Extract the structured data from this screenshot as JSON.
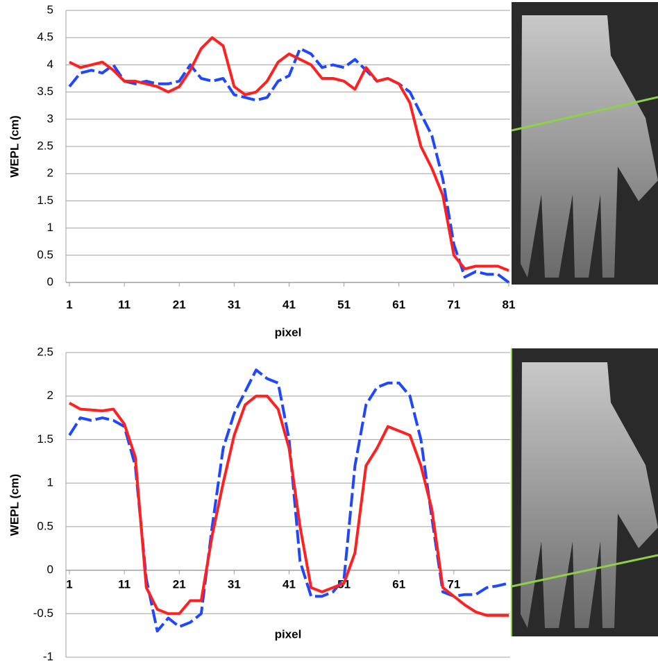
{
  "chart_data": [
    {
      "type": "line",
      "xlabel": "pixel",
      "ylabel": "WEPL (cm)",
      "x": [
        1,
        3,
        5,
        7,
        9,
        11,
        13,
        15,
        17,
        19,
        21,
        23,
        25,
        27,
        29,
        31,
        33,
        35,
        37,
        39,
        41,
        43,
        45,
        47,
        49,
        51,
        53,
        55,
        57,
        59,
        61,
        63,
        65,
        67,
        69,
        71,
        73,
        75,
        77,
        79,
        81
      ],
      "series": [
        {
          "color": "#1f47ff",
          "dashed": true,
          "values": [
            3.6,
            3.85,
            3.9,
            3.85,
            4.0,
            3.7,
            3.65,
            3.7,
            3.65,
            3.65,
            3.7,
            4.0,
            3.75,
            3.7,
            3.75,
            3.45,
            3.4,
            3.35,
            3.4,
            3.7,
            3.8,
            4.3,
            4.2,
            3.95,
            4.0,
            3.95,
            4.1,
            3.9,
            3.7,
            3.75,
            3.65,
            3.5,
            3.1,
            2.7,
            1.9,
            0.7,
            0.1,
            0.2,
            0.15,
            0.15,
            0.0
          ]
        },
        {
          "color": "#ff2020",
          "dashed": false,
          "values": [
            4.05,
            3.95,
            4.0,
            4.05,
            3.9,
            3.7,
            3.7,
            3.65,
            3.6,
            3.5,
            3.6,
            3.9,
            4.3,
            4.5,
            4.35,
            3.6,
            3.45,
            3.5,
            3.7,
            4.05,
            4.2,
            4.1,
            4.0,
            3.75,
            3.75,
            3.7,
            3.55,
            3.95,
            3.7,
            3.75,
            3.65,
            3.3,
            2.5,
            2.1,
            1.6,
            0.5,
            0.25,
            0.3,
            0.3,
            0.3,
            0.22
          ]
        }
      ],
      "xlim": [
        1,
        81
      ],
      "xticks": [
        1,
        11,
        21,
        31,
        41,
        51,
        61,
        71,
        81
      ],
      "ylim": [
        0,
        5
      ],
      "yticks": [
        0,
        0.5,
        1,
        1.5,
        2,
        2.5,
        3,
        3.5,
        4,
        4.5,
        5
      ],
      "grid": true
    },
    {
      "type": "line",
      "xlabel": "pixel",
      "ylabel": "WEPL (cm)",
      "x": [
        1,
        3,
        5,
        7,
        9,
        11,
        13,
        15,
        17,
        19,
        21,
        23,
        25,
        27,
        29,
        31,
        33,
        35,
        37,
        39,
        41,
        43,
        45,
        47,
        49,
        51,
        53,
        55,
        57,
        59,
        61,
        63,
        65,
        67,
        69,
        71,
        73,
        75,
        77,
        79,
        81
      ],
      "series": [
        {
          "color": "#1f47ff",
          "dashed": true,
          "values": [
            1.55,
            1.75,
            1.72,
            1.75,
            1.72,
            1.65,
            1.2,
            -0.1,
            -0.7,
            -0.55,
            -0.65,
            -0.6,
            -0.5,
            0.5,
            1.4,
            1.8,
            2.05,
            2.3,
            2.2,
            2.15,
            1.5,
            0.1,
            -0.3,
            -0.3,
            -0.25,
            -0.1,
            1.2,
            1.9,
            2.1,
            2.15,
            2.15,
            2.0,
            1.5,
            0.6,
            -0.25,
            -0.3,
            -0.28,
            -0.28,
            -0.2,
            -0.18,
            -0.15
          ]
        },
        {
          "color": "#ff2020",
          "dashed": false,
          "values": [
            1.92,
            1.85,
            1.84,
            1.83,
            1.85,
            1.68,
            1.3,
            -0.2,
            -0.45,
            -0.5,
            -0.5,
            -0.35,
            -0.35,
            0.4,
            1.0,
            1.55,
            1.9,
            2.0,
            2.0,
            1.85,
            1.4,
            0.5,
            -0.2,
            -0.25,
            -0.2,
            -0.15,
            0.2,
            1.2,
            1.4,
            1.65,
            1.6,
            1.55,
            1.2,
            0.7,
            -0.2,
            -0.3,
            -0.4,
            -0.48,
            -0.52,
            -0.52,
            -0.52
          ]
        }
      ],
      "xlim": [
        1,
        81
      ],
      "xticks": [
        1,
        11,
        21,
        31,
        41,
        51,
        61,
        71
      ],
      "ylim": [
        -1,
        2.5
      ],
      "yticks": [
        -1,
        -0.5,
        0,
        0.5,
        1,
        1.5,
        2,
        2.5
      ],
      "grid": true
    }
  ]
}
